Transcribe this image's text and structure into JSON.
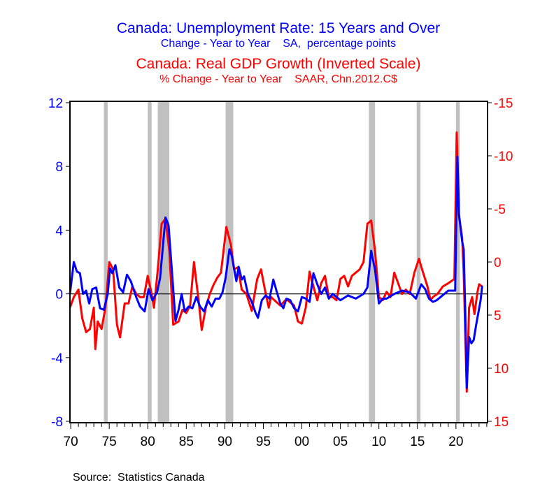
{
  "chart_data": {
    "type": "line",
    "titles": [
      {
        "text": "Canada: Unemployment Rate: 15 Years and Over",
        "color": "#0000ff",
        "size": "big"
      },
      {
        "text": "Change - Year to Year    SA,  percentage points",
        "color": "#0000ff",
        "size": "small"
      },
      {
        "text": "Canada: Real GDP Growth (Inverted Scale)",
        "color": "#ff0000",
        "size": "big"
      },
      {
        "text": "% Change - Year to Year    SAAR, Chn.2012.C$",
        "color": "#ff0000",
        "size": "small"
      }
    ],
    "source": "Source:  Statistics Canada",
    "xlim": [
      1969.9,
      2024.1
    ],
    "x_ticks": [
      "70",
      "75",
      "80",
      "85",
      "90",
      "95",
      "00",
      "05",
      "10",
      "15",
      "20"
    ],
    "x_tick_years": [
      1970,
      1975,
      1980,
      1985,
      1990,
      1995,
      2000,
      2005,
      2010,
      2015,
      2020
    ],
    "y_left": {
      "lim": [
        -8,
        12
      ],
      "ticks": [
        "12",
        "8",
        "4",
        "0",
        "-4",
        "-8"
      ],
      "tick_values": [
        12,
        8,
        4,
        0,
        -4,
        -8
      ],
      "color": "#0000ff"
    },
    "y_right": {
      "lim": [
        -15,
        15
      ],
      "inverted": true,
      "ticks": [
        "-15",
        "-10",
        "-5",
        "0",
        "5",
        "10",
        "15"
      ],
      "tick_values": [
        -15,
        -10,
        -5,
        0,
        5,
        10,
        15
      ],
      "color": "#ff0000"
    },
    "recessions": [
      [
        1974.3,
        1974.8
      ],
      [
        1980.0,
        1980.5
      ],
      [
        1981.3,
        1982.8
      ],
      [
        1990.1,
        1991.1
      ],
      [
        2008.7,
        2009.5
      ],
      [
        2014.9,
        2015.4
      ],
      [
        2020.0,
        2020.5
      ]
    ],
    "series": [
      {
        "name": "Unemployment Rate change (pp)",
        "axis": "left",
        "color": "#0000ff",
        "points": [
          [
            1969.9,
            0
          ],
          [
            1970.4,
            2.0
          ],
          [
            1970.8,
            1.4
          ],
          [
            1971.2,
            1.3
          ],
          [
            1971.6,
            0
          ],
          [
            1972,
            0.2
          ],
          [
            1972.4,
            -0.6
          ],
          [
            1972.8,
            0.3
          ],
          [
            1973.3,
            0.4
          ],
          [
            1973.8,
            -0.9
          ],
          [
            1974.3,
            -1.0
          ],
          [
            1974.8,
            0
          ],
          [
            1975.1,
            1.6
          ],
          [
            1975.4,
            1.3
          ],
          [
            1975.8,
            1.8
          ],
          [
            1976.3,
            0.4
          ],
          [
            1976.8,
            0.1
          ],
          [
            1977.3,
            1.2
          ],
          [
            1977.8,
            0.8
          ],
          [
            1978.5,
            -0.2
          ],
          [
            1979,
            -0.8
          ],
          [
            1979.6,
            -1.1
          ],
          [
            1980.1,
            0.3
          ],
          [
            1980.6,
            -0.4
          ],
          [
            1981.2,
            0.1
          ],
          [
            1981.6,
            1.0
          ],
          [
            1982,
            3.2
          ],
          [
            1982.3,
            4.8
          ],
          [
            1982.7,
            4.3
          ],
          [
            1983.2,
            1.0
          ],
          [
            1983.6,
            -1.7
          ],
          [
            1984,
            -1.0
          ],
          [
            1984.4,
            0
          ],
          [
            1984.8,
            -1.1
          ],
          [
            1985.3,
            -0.8
          ],
          [
            1985.8,
            -0.9
          ],
          [
            1986.3,
            -0.2
          ],
          [
            1986.8,
            -0.8
          ],
          [
            1987.3,
            -1.1
          ],
          [
            1987.8,
            -0.4
          ],
          [
            1988.3,
            -0.8
          ],
          [
            1988.8,
            -0.3
          ],
          [
            1989.3,
            -0.3
          ],
          [
            1989.7,
            0.1
          ],
          [
            1990.1,
            1.0
          ],
          [
            1990.6,
            2.8
          ],
          [
            1990.9,
            2.4
          ],
          [
            1991.5,
            0.8
          ],
          [
            1991.8,
            1.7
          ],
          [
            1992.2,
            0.9
          ],
          [
            1992.5,
            1.1
          ],
          [
            1993,
            0
          ],
          [
            1993.5,
            -0.5
          ],
          [
            1994,
            -1.2
          ],
          [
            1994.3,
            -1.5
          ],
          [
            1994.8,
            -0.4
          ],
          [
            1995.3,
            -0.1
          ],
          [
            1995.8,
            -0.3
          ],
          [
            1996.3,
            0.9
          ],
          [
            1996.7,
            0.2
          ],
          [
            1997.2,
            -0.6
          ],
          [
            1997.6,
            -0.9
          ],
          [
            1998,
            -0.3
          ],
          [
            1998.5,
            -0.4
          ],
          [
            1999,
            -0.9
          ],
          [
            1999.5,
            -1.1
          ],
          [
            2000,
            -0.2
          ],
          [
            2000.5,
            -0.3
          ],
          [
            2001,
            -0.5
          ],
          [
            2001.5,
            1.3
          ],
          [
            2002,
            0.6
          ],
          [
            2002.5,
            0
          ],
          [
            2003,
            0.4
          ],
          [
            2003.5,
            -0.3
          ],
          [
            2004,
            0
          ],
          [
            2005,
            -0.4
          ],
          [
            2006,
            -0.1
          ],
          [
            2007,
            -0.3
          ],
          [
            2008,
            0
          ],
          [
            2008.5,
            0.4
          ],
          [
            2009,
            2.7
          ],
          [
            2009.5,
            1.5
          ],
          [
            2010,
            -0.6
          ],
          [
            2010.5,
            -0.3
          ],
          [
            2011,
            -0.3
          ],
          [
            2012,
            0
          ],
          [
            2013,
            0.2
          ],
          [
            2014,
            0.1
          ],
          [
            2014.8,
            -0.3
          ],
          [
            2015.5,
            0.6
          ],
          [
            2016,
            0.3
          ],
          [
            2016.5,
            -0.3
          ],
          [
            2017,
            -0.5
          ],
          [
            2017.5,
            -0.4
          ],
          [
            2018,
            -0.2
          ],
          [
            2019,
            0.2
          ],
          [
            2019.9,
            0.2
          ],
          [
            2020.2,
            8.6
          ],
          [
            2020.4,
            5.0
          ],
          [
            2020.8,
            3.3
          ],
          [
            2021.0,
            2.8
          ],
          [
            2021.2,
            -1.0
          ],
          [
            2021.4,
            -5.9
          ],
          [
            2021.7,
            -2.7
          ],
          [
            2022,
            -3.1
          ],
          [
            2022.3,
            -2.9
          ],
          [
            2022.6,
            -2.0
          ],
          [
            2022.9,
            -1.2
          ],
          [
            2023.2,
            -0.4
          ],
          [
            2023.4,
            0.5
          ]
        ]
      },
      {
        "name": "Real GDP growth (%, inverted)",
        "axis": "right",
        "color": "#ff0000",
        "points": [
          [
            1969.9,
            4.3
          ],
          [
            1970.4,
            3.3
          ],
          [
            1971,
            2.6
          ],
          [
            1971.5,
            5.3
          ],
          [
            1972,
            6.6
          ],
          [
            1972.5,
            6.3
          ],
          [
            1973,
            4.3
          ],
          [
            1973.2,
            8.2
          ],
          [
            1973.5,
            5.6
          ],
          [
            1974,
            6.3
          ],
          [
            1974.5,
            4.3
          ],
          [
            1975,
            0
          ],
          [
            1975.5,
            0.7
          ],
          [
            1976,
            5.9
          ],
          [
            1976.4,
            7.1
          ],
          [
            1977,
            3.9
          ],
          [
            1977.5,
            3.9
          ],
          [
            1978,
            2.3
          ],
          [
            1978.5,
            3.0
          ],
          [
            1979,
            3.3
          ],
          [
            1979.5,
            3.3
          ],
          [
            1980,
            1.3
          ],
          [
            1980.5,
            3.0
          ],
          [
            1980.8,
            4.3
          ],
          [
            1981.3,
            0.7
          ],
          [
            1981.8,
            -3.6
          ],
          [
            1982.3,
            -4.1
          ],
          [
            1982.8,
            -1.0
          ],
          [
            1983.3,
            5.9
          ],
          [
            1984,
            5.6
          ],
          [
            1984.5,
            4.5
          ],
          [
            1985,
            4.8
          ],
          [
            1985.5,
            4.1
          ],
          [
            1986,
            0
          ],
          [
            1986.6,
            3.6
          ],
          [
            1987,
            6.4
          ],
          [
            1987.5,
            4.4
          ],
          [
            1988,
            3.1
          ],
          [
            1988.5,
            2.2
          ],
          [
            1989,
            1.5
          ],
          [
            1989.5,
            1.0
          ],
          [
            1990.2,
            -3.3
          ],
          [
            1990.8,
            -1.6
          ],
          [
            1991.2,
            0.7
          ],
          [
            1991.7,
            0.5
          ],
          [
            1992.2,
            2.6
          ],
          [
            1992.8,
            3.0
          ],
          [
            1993.5,
            4.6
          ],
          [
            1994.2,
            1.6
          ],
          [
            1994.7,
            0.7
          ],
          [
            1995.2,
            2.6
          ],
          [
            1995.7,
            4.3
          ],
          [
            1996,
            3.3
          ],
          [
            1997.2,
            4.1
          ],
          [
            1998,
            3.5
          ],
          [
            1999,
            4.1
          ],
          [
            1999.5,
            5.6
          ],
          [
            2000,
            5.8
          ],
          [
            2000.5,
            4.3
          ],
          [
            2001,
            0.9
          ],
          [
            2001.5,
            2.3
          ],
          [
            2002,
            3.6
          ],
          [
            2002.5,
            2.0
          ],
          [
            2003,
            1.3
          ],
          [
            2003.5,
            3.3
          ],
          [
            2004,
            3.3
          ],
          [
            2004.5,
            3.6
          ],
          [
            2005,
            1.6
          ],
          [
            2005.5,
            1.3
          ],
          [
            2006,
            2.3
          ],
          [
            2006.5,
            1.3
          ],
          [
            2007,
            1.0
          ],
          [
            2007.5,
            0.7
          ],
          [
            2008,
            0
          ],
          [
            2008.5,
            -3.6
          ],
          [
            2009,
            -3.9
          ],
          [
            2009.5,
            -1.0
          ],
          [
            2010,
            3.3
          ],
          [
            2010.5,
            3.6
          ],
          [
            2011,
            2.8
          ],
          [
            2011.5,
            3.3
          ],
          [
            2012,
            1.0
          ],
          [
            2012.5,
            2.0
          ],
          [
            2013,
            3.0
          ],
          [
            2013.5,
            2.6
          ],
          [
            2014,
            3.0
          ],
          [
            2014.6,
            1.0
          ],
          [
            2015.2,
            -0.3
          ],
          [
            2015.6,
            0.7
          ],
          [
            2016.3,
            2.3
          ],
          [
            2016.7,
            3.6
          ],
          [
            2017,
            3.3
          ],
          [
            2017.6,
            3.0
          ],
          [
            2018.3,
            2.3
          ],
          [
            2019,
            2.0
          ],
          [
            2019.8,
            1.6
          ],
          [
            2020.1,
            -12.2
          ],
          [
            2020.4,
            -4.3
          ],
          [
            2020.8,
            -2.3
          ],
          [
            2021.0,
            1.0
          ],
          [
            2021.4,
            12.2
          ],
          [
            2021.7,
            4.3
          ],
          [
            2022.1,
            3.3
          ],
          [
            2022.4,
            4.9
          ],
          [
            2022.8,
            2.8
          ],
          [
            2023,
            2.1
          ],
          [
            2023.4,
            2.3
          ]
        ]
      }
    ]
  }
}
